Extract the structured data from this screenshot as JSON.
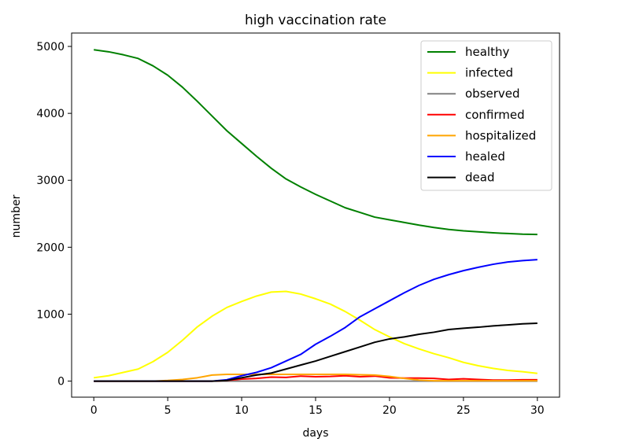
{
  "chart_data": {
    "type": "line",
    "title": "high vaccination rate",
    "xlabel": "days",
    "ylabel": "number",
    "xlim": [
      -1.5,
      31.5
    ],
    "ylim": [
      -240,
      5200
    ],
    "xticks": [
      0,
      5,
      10,
      15,
      20,
      25,
      30
    ],
    "yticks": [
      0,
      1000,
      2000,
      3000,
      4000,
      5000
    ],
    "grid": false,
    "legend_position": "upper right",
    "x": [
      0,
      1,
      2,
      3,
      4,
      5,
      6,
      7,
      8,
      9,
      10,
      11,
      12,
      13,
      14,
      15,
      16,
      17,
      18,
      19,
      20,
      21,
      22,
      23,
      24,
      25,
      26,
      27,
      28,
      29,
      30
    ],
    "series": [
      {
        "name": "healthy",
        "color": "#008000",
        "values": [
          4950,
          4920,
          4875,
          4820,
          4710,
          4570,
          4390,
          4180,
          3960,
          3740,
          3550,
          3360,
          3180,
          3020,
          2900,
          2790,
          2690,
          2590,
          2520,
          2450,
          2410,
          2370,
          2330,
          2295,
          2265,
          2245,
          2230,
          2215,
          2205,
          2195,
          2190
        ]
      },
      {
        "name": "infected",
        "color": "#ffff00",
        "values": [
          50,
          80,
          130,
          180,
          290,
          430,
          610,
          810,
          970,
          1100,
          1190,
          1270,
          1330,
          1340,
          1300,
          1230,
          1150,
          1040,
          910,
          770,
          660,
          560,
          480,
          410,
          350,
          280,
          230,
          190,
          160,
          140,
          115
        ]
      },
      {
        "name": "observed",
        "color": "#808080",
        "values": [
          0,
          0,
          0,
          0,
          0,
          0,
          0,
          0,
          0,
          0,
          0,
          0,
          0,
          0,
          0,
          0,
          0,
          0,
          0,
          0,
          0,
          0,
          0,
          0,
          0,
          0,
          0,
          0,
          0,
          0,
          0
        ]
      },
      {
        "name": "confirmed",
        "color": "#ff0000",
        "values": [
          0,
          0,
          0,
          0,
          0,
          0,
          0,
          0,
          0,
          10,
          30,
          40,
          60,
          55,
          75,
          65,
          70,
          80,
          65,
          75,
          50,
          45,
          45,
          40,
          25,
          35,
          25,
          15,
          15,
          20,
          20
        ]
      },
      {
        "name": "hospitalized",
        "color": "#ffa500",
        "values": [
          0,
          0,
          0,
          0,
          0,
          10,
          25,
          50,
          90,
          100,
          100,
          100,
          100,
          100,
          100,
          100,
          100,
          100,
          95,
          90,
          70,
          40,
          15,
          5,
          5,
          5,
          5,
          5,
          5,
          5,
          5
        ]
      },
      {
        "name": "healed",
        "color": "#0000ff",
        "values": [
          0,
          0,
          0,
          0,
          0,
          0,
          0,
          0,
          0,
          20,
          80,
          130,
          200,
          300,
          400,
          550,
          670,
          800,
          960,
          1080,
          1200,
          1320,
          1430,
          1520,
          1590,
          1650,
          1700,
          1745,
          1780,
          1800,
          1815
        ]
      },
      {
        "name": "dead",
        "color": "#000000",
        "values": [
          0,
          0,
          0,
          0,
          0,
          0,
          0,
          0,
          0,
          10,
          50,
          90,
          120,
          180,
          240,
          300,
          370,
          440,
          510,
          580,
          630,
          660,
          700,
          730,
          770,
          790,
          805,
          825,
          840,
          855,
          865
        ]
      }
    ]
  }
}
